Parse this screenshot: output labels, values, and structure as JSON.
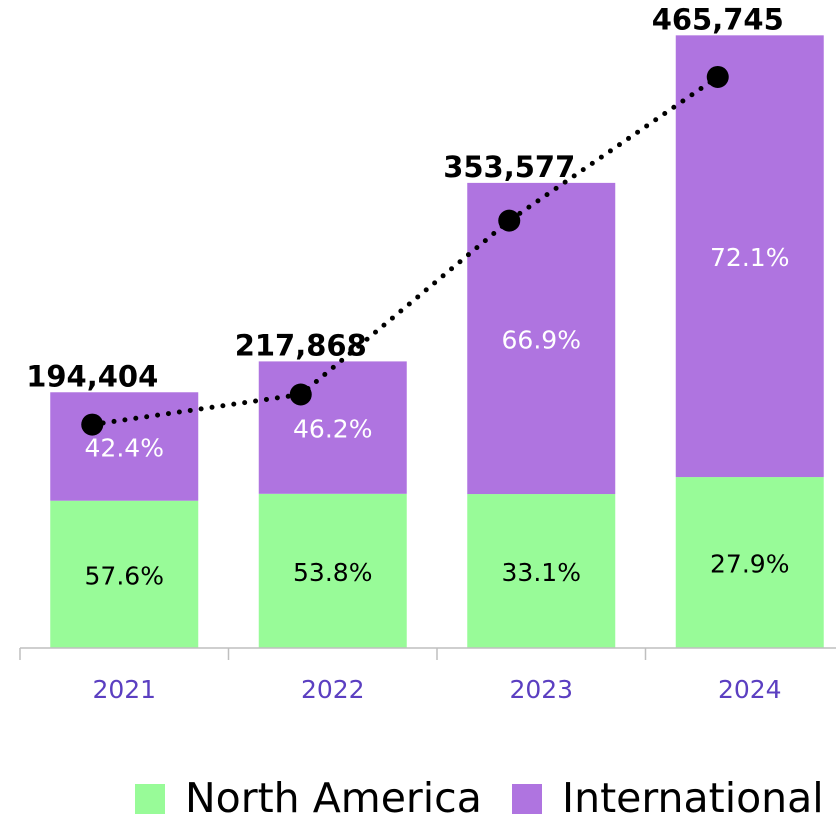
{
  "chart_data": {
    "type": "bar",
    "categories": [
      "2021",
      "2022",
      "2023",
      "2024"
    ],
    "series": [
      {
        "name": "North America",
        "color": "#98fb98",
        "values": [
          57.6,
          53.8,
          33.1,
          27.9
        ],
        "value_labels": [
          "57.6%",
          "53.8%",
          "33.1%",
          "27.9%"
        ]
      },
      {
        "name": "International",
        "color": "#af74e0",
        "values": [
          42.4,
          46.2,
          66.9,
          72.1
        ],
        "value_labels": [
          "42.4%",
          "46.2%",
          "66.9%",
          "72.1%"
        ]
      }
    ],
    "line": {
      "values": [
        194404,
        217868,
        353577,
        465745
      ],
      "value_labels": [
        "194,404",
        "217,868",
        "353,577",
        "465,745"
      ],
      "color": "#000000",
      "axis": "y2"
    },
    "ylim": [
      0,
      485000
    ],
    "y2lim": [
      20000,
      518000
    ],
    "legend": "bottom"
  }
}
